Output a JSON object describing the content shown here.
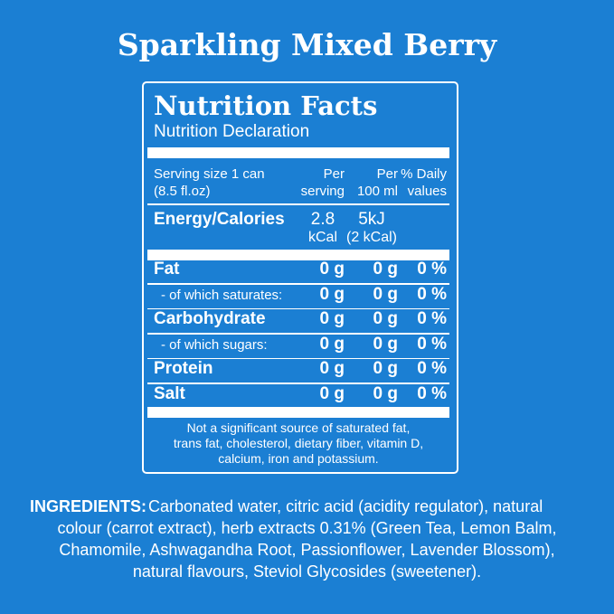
{
  "title": "Sparkling Mixed Berry",
  "label": {
    "heading": "Nutrition Facts",
    "subheading": "Nutrition Declaration",
    "columns": [
      [
        "Serving size 1 can",
        "(8.5 fl.oz)"
      ],
      [
        "Per",
        "serving"
      ],
      [
        "Per",
        "100 ml"
      ],
      [
        "% Daily",
        "values"
      ]
    ],
    "energy": {
      "name": "Energy/Calories",
      "per_serving": [
        "2.8",
        "kCal"
      ],
      "per_100ml": [
        "5kJ",
        "(2 kCal)"
      ]
    },
    "rows": [
      [
        "Fat",
        "0 g",
        "0 g",
        "0 %"
      ],
      [
        "- of which saturates:",
        "0 g",
        "0 g",
        "0 %"
      ],
      [
        "Carbohydrate",
        "0 g",
        "0 g",
        "0 %"
      ],
      [
        "- of which sugars:",
        "0 g",
        "0 g",
        "0 %"
      ],
      [
        "Protein",
        "0 g",
        "0 g",
        "0 %"
      ],
      [
        "Salt",
        "0 g",
        "0 g",
        "0 %"
      ]
    ],
    "footnote": [
      "Not a significant source of saturated fat,",
      "trans fat, cholesterol, dietary fiber, vitamin D,",
      "calcium, iron and potassium."
    ]
  },
  "ingredients": {
    "label": "INGREDIENTS:",
    "lines": [
      "Carbonated water, citric acid (acidity regulator), natural",
      "colour (carrot extract), herb extracts 0.31% (Green Tea, Lemon Balm,",
      "Chamomile, Ashwagandha Root, Passionflower, Lavender Blossom),",
      "natural flavours, Steviol Glycosides (sweetener)."
    ]
  }
}
